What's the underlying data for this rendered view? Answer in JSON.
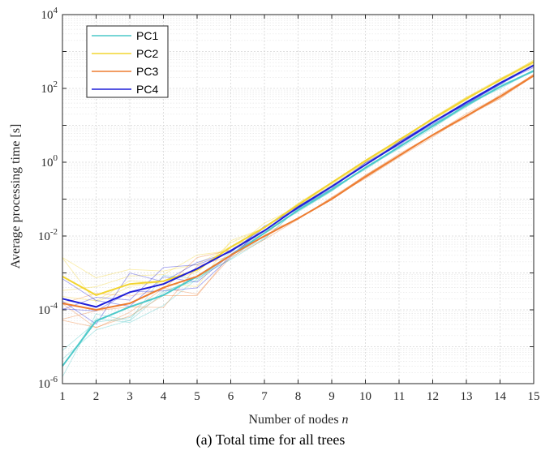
{
  "chart_data": {
    "type": "line",
    "title": "",
    "caption": "(a) Total time for all trees",
    "xlabel_text": "Number of nodes ",
    "xlabel_var": "n",
    "ylabel": "Average processing time [s]",
    "x": [
      1,
      2,
      3,
      4,
      5,
      6,
      7,
      8,
      9,
      10,
      11,
      12,
      13,
      14,
      15
    ],
    "xlim": [
      1,
      15
    ],
    "ylim": [
      1e-06,
      10000.0
    ],
    "yscale": "log",
    "grid": true,
    "minor_grid": true,
    "legend_position": "top-left",
    "yticks": [
      {
        "base": "10",
        "exp": "-6"
      },
      {
        "base": "10",
        "exp": "-4"
      },
      {
        "base": "10",
        "exp": "-2"
      },
      {
        "base": "10",
        "exp": "0"
      },
      {
        "base": "10",
        "exp": "2"
      },
      {
        "base": "10",
        "exp": "4"
      }
    ],
    "series": [
      {
        "name": "PC1",
        "color": "#4cc9c9",
        "values": [
          3e-06,
          5e-05,
          0.00012,
          0.00025,
          0.0008,
          0.003,
          0.012,
          0.05,
          0.18,
          0.7,
          2.6,
          9.5,
          35,
          110,
          300
        ]
      },
      {
        "name": "PC2",
        "color": "#f2d530",
        "values": [
          0.0008,
          0.00025,
          0.0005,
          0.0006,
          0.0012,
          0.005,
          0.017,
          0.07,
          0.28,
          1.1,
          4,
          15,
          52,
          170,
          520
        ]
      },
      {
        "name": "PC3",
        "color": "#ed7d31",
        "values": [
          0.00015,
          0.0001,
          0.00015,
          0.0004,
          0.0008,
          0.003,
          0.01,
          0.03,
          0.1,
          0.4,
          1.5,
          5.5,
          18,
          60,
          220
        ]
      },
      {
        "name": "PC4",
        "color": "#1f1fd9",
        "values": [
          0.0002,
          0.00012,
          0.0003,
          0.0005,
          0.0013,
          0.004,
          0.014,
          0.06,
          0.22,
          0.85,
          3.2,
          12,
          42,
          140,
          420
        ]
      }
    ]
  }
}
